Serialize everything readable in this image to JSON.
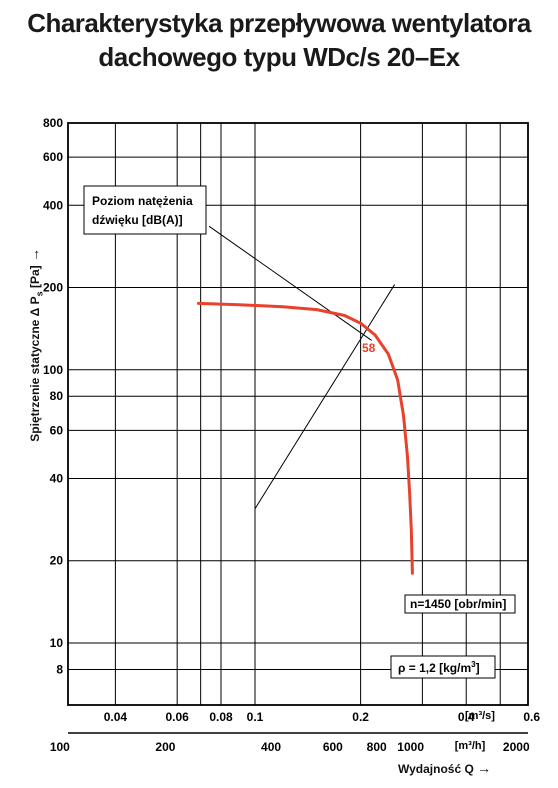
{
  "title_line1": "Charakterystyka przepływowa wentylatora",
  "title_line2": "dachowego typu WDc/s 20–Ex",
  "chart_data": {
    "type": "line",
    "yscale": "log",
    "xscale": "log",
    "ylabel": "Spiętrzenie statyczne Δ P",
    "ylabel_sub": "s",
    "ylabel_unit": "[Pa]",
    "ylabel_arrow": "→",
    "ylim": [
      10,
      800
    ],
    "yticks": [
      {
        "label": "800",
        "v": 800
      },
      {
        "label": "600",
        "v": 600
      },
      {
        "label": "400",
        "v": 400
      },
      {
        "label": "200",
        "v": 200
      },
      {
        "label": "100",
        "v": 100
      },
      {
        "label": "80",
        "v": 80
      },
      {
        "label": "60",
        "v": 60
      },
      {
        "label": "40",
        "v": 40
      },
      {
        "label": "20",
        "v": 20
      },
      {
        "label": "10",
        "v": 10
      },
      {
        "label": "8",
        "v": 8
      }
    ],
    "x_top_unit": "[m³/s]",
    "x_top_ticks": [
      {
        "label": "0.04",
        "v": 0.04
      },
      {
        "label": "0.06",
        "v": 0.06
      },
      {
        "label": "0.08",
        "v": 0.08
      },
      {
        "label": "0.1",
        "v": 0.1
      },
      {
        "label": "0.2",
        "v": 0.2
      },
      {
        "label": "0.4",
        "v": 0.4
      },
      {
        "label": "0.6",
        "v": 0.6
      }
    ],
    "x_bottom_unit": "[m³/h]",
    "x_bottom_ticks": [
      {
        "label": "100",
        "v": 100
      },
      {
        "label": "200",
        "v": 200
      },
      {
        "label": "400",
        "v": 400
      },
      {
        "label": "600",
        "v": 600
      },
      {
        "label": "800",
        "v": 800
      },
      {
        "label": "1000",
        "v": 1000
      },
      {
        "label": "2000",
        "v": 2000
      }
    ],
    "xlabel": "Wydajność Q",
    "xlabel_arrow": "→",
    "series": [
      {
        "color": "#e8412c",
        "points": [
          [
            0.069,
            175
          ],
          [
            0.09,
            173
          ],
          [
            0.12,
            170
          ],
          [
            0.15,
            166
          ],
          [
            0.18,
            158
          ],
          [
            0.2,
            148
          ],
          [
            0.22,
            134
          ],
          [
            0.24,
            114
          ],
          [
            0.255,
            92
          ],
          [
            0.265,
            68
          ],
          [
            0.272,
            48
          ],
          [
            0.276,
            35
          ],
          [
            0.279,
            26
          ],
          [
            0.281,
            18
          ]
        ]
      }
    ],
    "reference_lines": [
      {
        "type": "system",
        "points": [
          [
            0.1,
            31
          ],
          [
            0.25,
            205
          ]
        ]
      },
      {
        "type": "noise-leader",
        "points": [
          [
            0.074,
            335
          ],
          [
            0.215,
            128
          ]
        ]
      }
    ],
    "annotations": {
      "noise_box_line1": "Poziom natężenia",
      "noise_box_line2": "dźwięku [dB(A)]",
      "noise_value": "58",
      "speed_label": "n=1450 [obr/min]",
      "density_label_prefix": "ρ = 1,2 [kg/m",
      "density_label_sup": "3",
      "density_label_suffix": "]"
    }
  }
}
